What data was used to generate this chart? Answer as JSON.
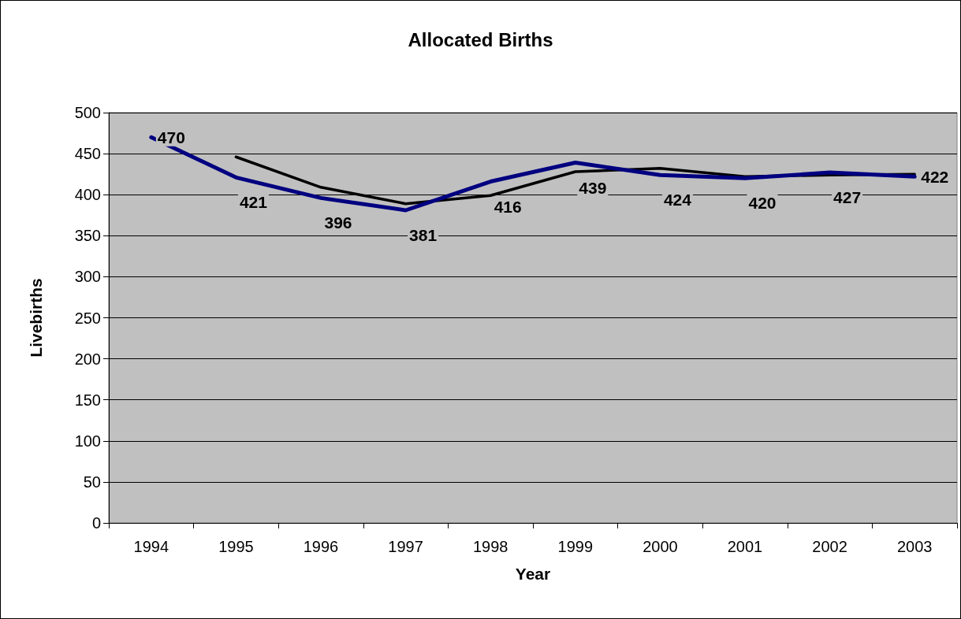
{
  "chart_data": {
    "type": "line",
    "title": "Allocated Births",
    "xlabel": "Year",
    "ylabel": "Livebirths",
    "categories": [
      "1994",
      "1995",
      "1996",
      "1997",
      "1998",
      "1999",
      "2000",
      "2001",
      "2002",
      "2003"
    ],
    "series": [
      {
        "color": "#000080",
        "values": [
          470,
          421,
          396,
          381,
          416,
          439,
          424,
          420,
          427,
          422
        ],
        "value_labels": [
          "470",
          "421",
          "396",
          "381",
          "416",
          "439",
          "424",
          "420",
          "427",
          "422"
        ]
      },
      {
        "color": "#000000",
        "values": [
          null,
          446,
          409,
          389,
          399,
          428,
          432,
          422,
          424,
          425
        ]
      }
    ],
    "ylim": [
      0,
      500
    ],
    "yticks": [
      0,
      50,
      100,
      150,
      200,
      250,
      300,
      350,
      400,
      450,
      500
    ],
    "grid": "y",
    "marker": "none"
  }
}
